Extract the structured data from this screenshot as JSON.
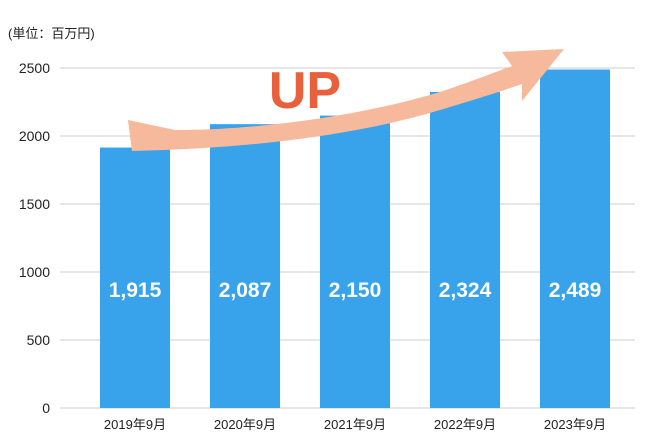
{
  "chart_data": {
    "type": "bar",
    "unit_label": "(単位：百万円)",
    "categories": [
      "2019年9月",
      "2020年9月",
      "2021年9月",
      "2022年9月",
      "2023年9月"
    ],
    "values": [
      1915,
      2087,
      2150,
      2324,
      2489
    ],
    "value_labels": [
      "1,915",
      "2,087",
      "2,150",
      "2,324",
      "2,489"
    ],
    "y_ticks": [
      "0",
      "500",
      "1000",
      "1500",
      "2000",
      "2500"
    ],
    "ylim": [
      0,
      2500
    ],
    "grid": true,
    "annotation": "UP",
    "colors": {
      "bar": "#38a3eb",
      "arrow": "#f7b99c",
      "annotation_text": "#e8603c",
      "grid": "#cccccc"
    }
  }
}
